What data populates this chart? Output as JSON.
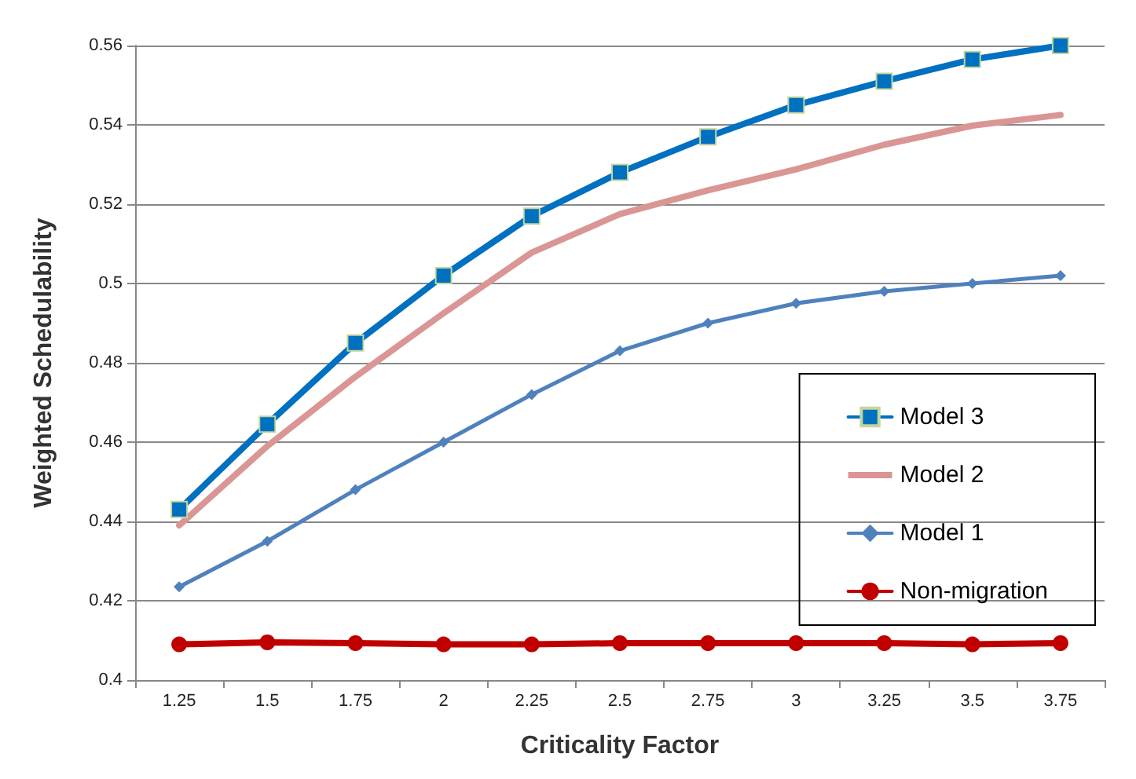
{
  "chart_data": {
    "type": "line",
    "xlabel": "Criticality Factor",
    "ylabel": "Weighted Schedulability",
    "categories": [
      "1.25",
      "1.5",
      "1.75",
      "2",
      "2.25",
      "2.5",
      "2.75",
      "3",
      "3.25",
      "3.5",
      "3.75"
    ],
    "ylim": [
      0.4,
      0.56
    ],
    "yticks": [
      0.4,
      0.42,
      0.44,
      0.46,
      0.48,
      0.5,
      0.52,
      0.54,
      0.56
    ],
    "grid": "y",
    "legend": "right",
    "series": [
      {
        "name": "Model 3",
        "color": "#0070c0",
        "marker": "square",
        "values": [
          0.443,
          0.4645,
          0.485,
          0.502,
          0.517,
          0.528,
          0.537,
          0.545,
          0.551,
          0.5565,
          0.56
        ]
      },
      {
        "name": "Model 2",
        "color": "#d99694",
        "marker": "none",
        "values": [
          0.439,
          0.459,
          0.4765,
          0.4925,
          0.5078,
          0.5175,
          0.5235,
          0.5288,
          0.535,
          0.5398,
          0.5425
        ]
      },
      {
        "name": "Model 1",
        "color": "#4f81bd",
        "marker": "diamond",
        "values": [
          0.4235,
          0.435,
          0.448,
          0.46,
          0.472,
          0.483,
          0.49,
          0.495,
          0.498,
          0.5,
          0.502
        ]
      },
      {
        "name": "Non-migration",
        "color": "#c00000",
        "marker": "circle",
        "values": [
          0.409,
          0.4095,
          0.4093,
          0.409,
          0.409,
          0.4093,
          0.4093,
          0.4093,
          0.4093,
          0.409,
          0.4093
        ]
      }
    ]
  }
}
